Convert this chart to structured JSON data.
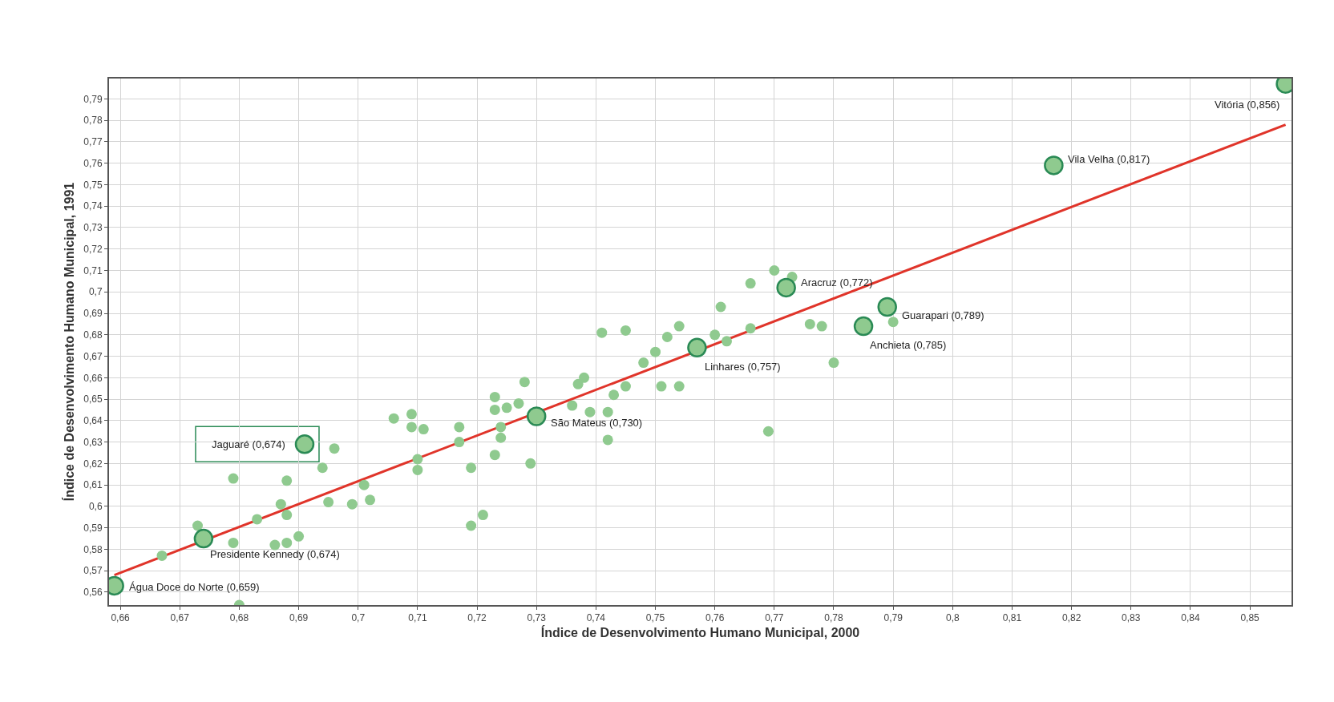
{
  "chart_data": {
    "type": "scatter",
    "xlabel": "Índice de Desenvolvimento Humano Municipal, 2000",
    "ylabel": "Índice de Desenvolvimento Humano Municipal, 1991",
    "xlim": [
      0.6581,
      0.857
    ],
    "ylim": [
      0.554,
      0.7995
    ],
    "xticks": [
      {
        "value": 0.66,
        "label": "0,66"
      },
      {
        "value": 0.67,
        "label": "0,67"
      },
      {
        "value": 0.68,
        "label": "0,68"
      },
      {
        "value": 0.69,
        "label": "0,69"
      },
      {
        "value": 0.7,
        "label": "0,7"
      },
      {
        "value": 0.71,
        "label": "0,71"
      },
      {
        "value": 0.72,
        "label": "0,72"
      },
      {
        "value": 0.73,
        "label": "0,73"
      },
      {
        "value": 0.74,
        "label": "0,74"
      },
      {
        "value": 0.75,
        "label": "0,75"
      },
      {
        "value": 0.76,
        "label": "0,76"
      },
      {
        "value": 0.77,
        "label": "0,77"
      },
      {
        "value": 0.78,
        "label": "0,78"
      },
      {
        "value": 0.79,
        "label": "0,79"
      },
      {
        "value": 0.8,
        "label": "0,8"
      },
      {
        "value": 0.81,
        "label": "0,81"
      },
      {
        "value": 0.82,
        "label": "0,82"
      },
      {
        "value": 0.83,
        "label": "0,83"
      },
      {
        "value": 0.84,
        "label": "0,84"
      },
      {
        "value": 0.85,
        "label": "0,85"
      }
    ],
    "yticks": [
      {
        "value": 0.56,
        "label": "0,56"
      },
      {
        "value": 0.57,
        "label": "0,57"
      },
      {
        "value": 0.58,
        "label": "0,58"
      },
      {
        "value": 0.59,
        "label": "0,59"
      },
      {
        "value": 0.6,
        "label": "0,6"
      },
      {
        "value": 0.61,
        "label": "0,61"
      },
      {
        "value": 0.62,
        "label": "0,62"
      },
      {
        "value": 0.63,
        "label": "0,63"
      },
      {
        "value": 0.64,
        "label": "0,64"
      },
      {
        "value": 0.65,
        "label": "0,65"
      },
      {
        "value": 0.66,
        "label": "0,66"
      },
      {
        "value": 0.67,
        "label": "0,67"
      },
      {
        "value": 0.68,
        "label": "0,68"
      },
      {
        "value": 0.69,
        "label": "0,69"
      },
      {
        "value": 0.7,
        "label": "0,7"
      },
      {
        "value": 0.71,
        "label": "0,71"
      },
      {
        "value": 0.72,
        "label": "0,72"
      },
      {
        "value": 0.73,
        "label": "0,73"
      },
      {
        "value": 0.74,
        "label": "0,74"
      },
      {
        "value": 0.75,
        "label": "0,75"
      },
      {
        "value": 0.76,
        "label": "0,76"
      },
      {
        "value": 0.77,
        "label": "0,77"
      },
      {
        "value": 0.78,
        "label": "0,78"
      },
      {
        "value": 0.79,
        "label": "0,79"
      }
    ],
    "grid": true,
    "marker": "circle",
    "series": [
      {
        "type": "line",
        "marker": "none",
        "color": "#e0342a",
        "x": [
          0.659,
          0.856
        ],
        "values": [
          0.568,
          0.778
        ]
      },
      {
        "color": "#8fca8f",
        "x": [
          0.667,
          0.673,
          0.679,
          0.679,
          0.68,
          0.683,
          0.687,
          0.688,
          0.688,
          0.686,
          0.688,
          0.69,
          0.696,
          0.694,
          0.695,
          0.699,
          0.701,
          0.702,
          0.706,
          0.709,
          0.709,
          0.711,
          0.71,
          0.71,
          0.717,
          0.717,
          0.719,
          0.719,
          0.721,
          0.723,
          0.723,
          0.725,
          0.727,
          0.728,
          0.724,
          0.724,
          0.723,
          0.729,
          0.77,
          0.773,
          0.766,
          0.761,
          0.754,
          0.752,
          0.76,
          0.762,
          0.766,
          0.75,
          0.748,
          0.741,
          0.745,
          0.738,
          0.737,
          0.745,
          0.751,
          0.754,
          0.743,
          0.736,
          0.739,
          0.742,
          0.742,
          0.769,
          0.776,
          0.778,
          0.78,
          0.79
        ],
        "values": [
          0.577,
          0.591,
          0.613,
          0.583,
          0.554,
          0.594,
          0.601,
          0.612,
          0.596,
          0.582,
          0.583,
          0.586,
          0.627,
          0.618,
          0.602,
          0.601,
          0.61,
          0.603,
          0.641,
          0.643,
          0.637,
          0.636,
          0.622,
          0.617,
          0.637,
          0.63,
          0.618,
          0.591,
          0.596,
          0.651,
          0.645,
          0.646,
          0.648,
          0.658,
          0.637,
          0.632,
          0.624,
          0.62,
          0.71,
          0.707,
          0.704,
          0.693,
          0.684,
          0.679,
          0.68,
          0.677,
          0.683,
          0.672,
          0.667,
          0.681,
          0.682,
          0.66,
          0.657,
          0.656,
          0.656,
          0.656,
          0.652,
          0.647,
          0.644,
          0.644,
          0.631,
          0.635,
          0.685,
          0.684,
          0.667,
          0.686
        ]
      },
      {
        "color": "#2a8a55",
        "x": [
          0.856,
          0.817,
          0.772,
          0.789,
          0.785,
          0.757,
          0.73,
          0.691,
          0.674,
          0.659
        ],
        "values": [
          0.797,
          0.759,
          0.702,
          0.693,
          0.684,
          0.674,
          0.642,
          0.629,
          0.585,
          0.563
        ]
      }
    ],
    "annotations": [
      {
        "text": "Vitória (0,856)",
        "x": 0.856,
        "y": 0.797
      },
      {
        "text": "Vila Velha (0,817)",
        "x": 0.817,
        "y": 0.759
      },
      {
        "text": "Aracruz (0,772)",
        "x": 0.772,
        "y": 0.702
      },
      {
        "text": "Guarapari (0,789)",
        "x": 0.789,
        "y": 0.693
      },
      {
        "text": "Anchieta (0,785)",
        "x": 0.785,
        "y": 0.684
      },
      {
        "text": "Linhares (0,757)",
        "x": 0.757,
        "y": 0.674
      },
      {
        "text": "São Mateus (0,730)",
        "x": 0.73,
        "y": 0.642
      },
      {
        "text": "Jaguaré (0,674)",
        "x": 0.691,
        "y": 0.629
      },
      {
        "text": "Presidente Kennedy (0,674)",
        "x": 0.674,
        "y": 0.585
      },
      {
        "text": "Água Doce do Norte (0,659)",
        "x": 0.659,
        "y": 0.563
      }
    ]
  }
}
